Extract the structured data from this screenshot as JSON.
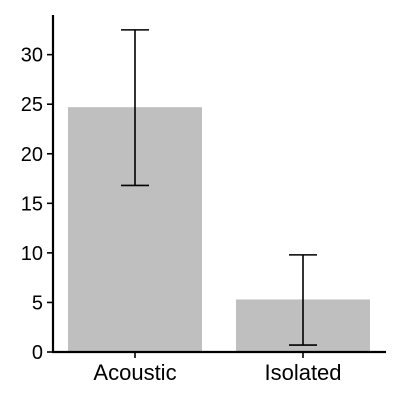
{
  "chart_data": {
    "type": "bar",
    "categories": [
      "Acoustic",
      "Isolated"
    ],
    "values": [
      24.7,
      5.3
    ],
    "error_bars": [
      {
        "low": 16.8,
        "high": 32.5
      },
      {
        "low": 0.7,
        "high": 9.8
      }
    ],
    "yticks": [
      0,
      5,
      10,
      15,
      20,
      25,
      30
    ],
    "ylim": [
      0,
      34
    ],
    "title": "",
    "xlabel": "",
    "ylabel": "",
    "grid": false,
    "bar_color": "#bfbfbf"
  }
}
